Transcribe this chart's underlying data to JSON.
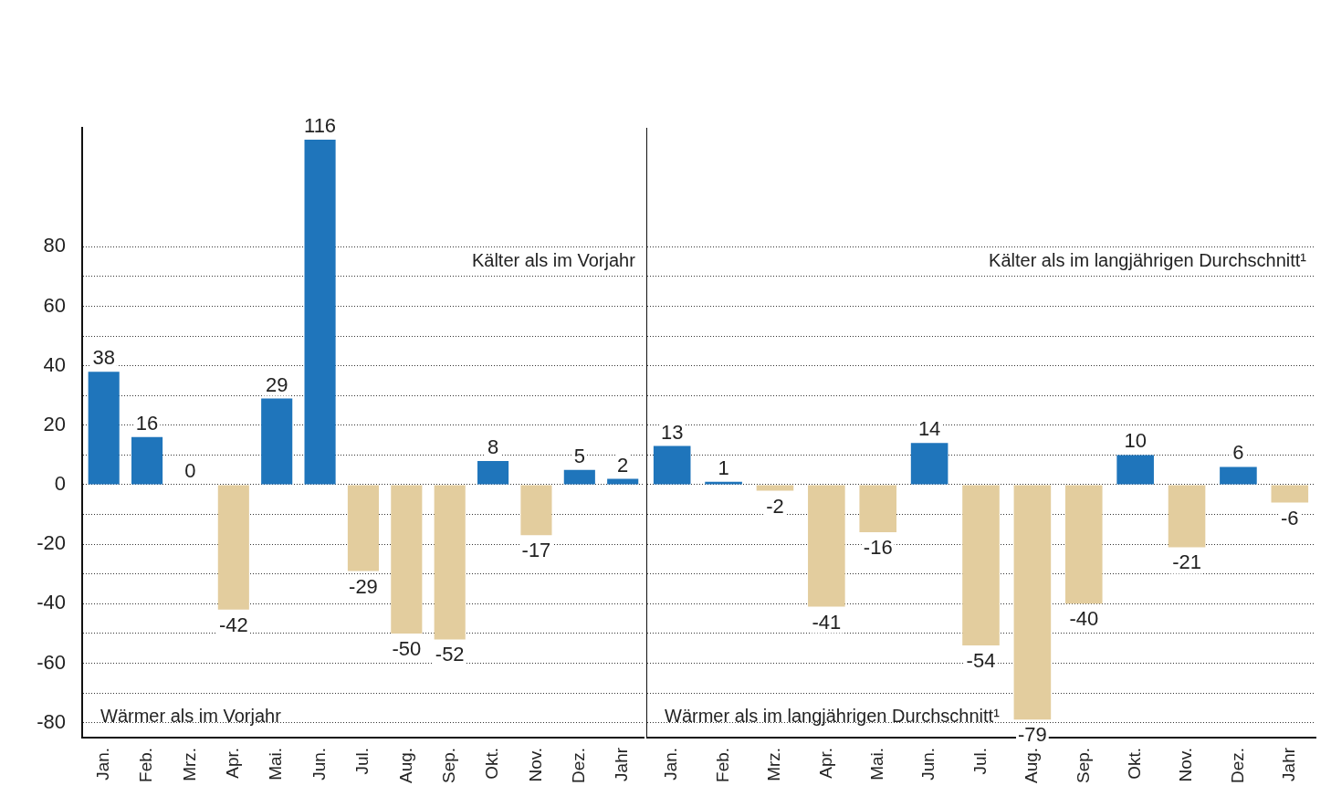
{
  "chart_data": [
    {
      "type": "bar",
      "categories": [
        "Jan.",
        "Feb.",
        "Mrz.",
        "Apr.",
        "Mai.",
        "Jun.",
        "Jul.",
        "Aug.",
        "Sep.",
        "Okt.",
        "Nov.",
        "Dez.",
        "Jahr"
      ],
      "values": [
        38,
        16,
        0,
        -42,
        29,
        116,
        -29,
        -50,
        -52,
        8,
        -17,
        5,
        2
      ],
      "colors": [
        "#1f75bb",
        "#1f75bb",
        "#1f75bb",
        "#e3cd9e",
        "#1f75bb",
        "#1f75bb",
        "#e3cd9e",
        "#e3cd9e",
        "#e3cd9e",
        "#1f75bb",
        "#e3cd9e",
        "#1f75bb",
        "#1f75bb"
      ],
      "data_labels": true,
      "ylim": [
        -85,
        120
      ],
      "yticks": [
        -80,
        {
          "value": -70,
          "label": null
        },
        -60,
        {
          "value": -50,
          "label": null
        },
        -40,
        {
          "value": -30,
          "label": null
        },
        -20,
        {
          "value": -10,
          "label": null
        },
        0,
        {
          "value": 10,
          "label": null
        },
        20,
        {
          "value": 30,
          "label": null
        },
        40,
        {
          "value": 50,
          "label": null
        },
        60,
        {
          "value": 70,
          "label": null
        },
        80
      ],
      "grid": "y",
      "annotations": [
        "Kälter als im Vorjahr",
        "Wärmer als im Vorjahr"
      ]
    },
    {
      "type": "bar",
      "categories": [
        "Jan.",
        "Feb.",
        "Mrz.",
        "Apr.",
        "Mai.",
        "Jun.",
        "Jul.",
        "Aug.",
        "Sep.",
        "Okt.",
        "Nov.",
        "Dez.",
        "Jahr"
      ],
      "values": [
        13,
        1,
        -2,
        -41,
        -16,
        14,
        -54,
        -79,
        -40,
        10,
        -21,
        6,
        -6
      ],
      "colors": [
        "#1f75bb",
        "#1f75bb",
        "#e3cd9e",
        "#e3cd9e",
        "#e3cd9e",
        "#1f75bb",
        "#e3cd9e",
        "#e3cd9e",
        "#e3cd9e",
        "#1f75bb",
        "#e3cd9e",
        "#1f75bb",
        "#e3cd9e"
      ],
      "data_labels": true,
      "ylim": [
        -85,
        120
      ],
      "tick_labels": "x",
      "yticks": [
        -80,
        {
          "value": -70,
          "label": null
        },
        -60,
        {
          "value": -50,
          "label": null
        },
        -40,
        {
          "value": -30,
          "label": null
        },
        -20,
        {
          "value": -10,
          "label": null
        },
        0,
        {
          "value": 10,
          "label": null
        },
        20,
        {
          "value": 30,
          "label": null
        },
        40,
        {
          "value": 50,
          "label": null
        },
        60,
        {
          "value": 70,
          "label": null
        },
        80
      ],
      "grid": "y",
      "annotations": [
        "Kälter als im langjährigen Durchschnitt¹",
        "Wärmer als im langjährigen Durchschnitt¹"
      ]
    }
  ]
}
